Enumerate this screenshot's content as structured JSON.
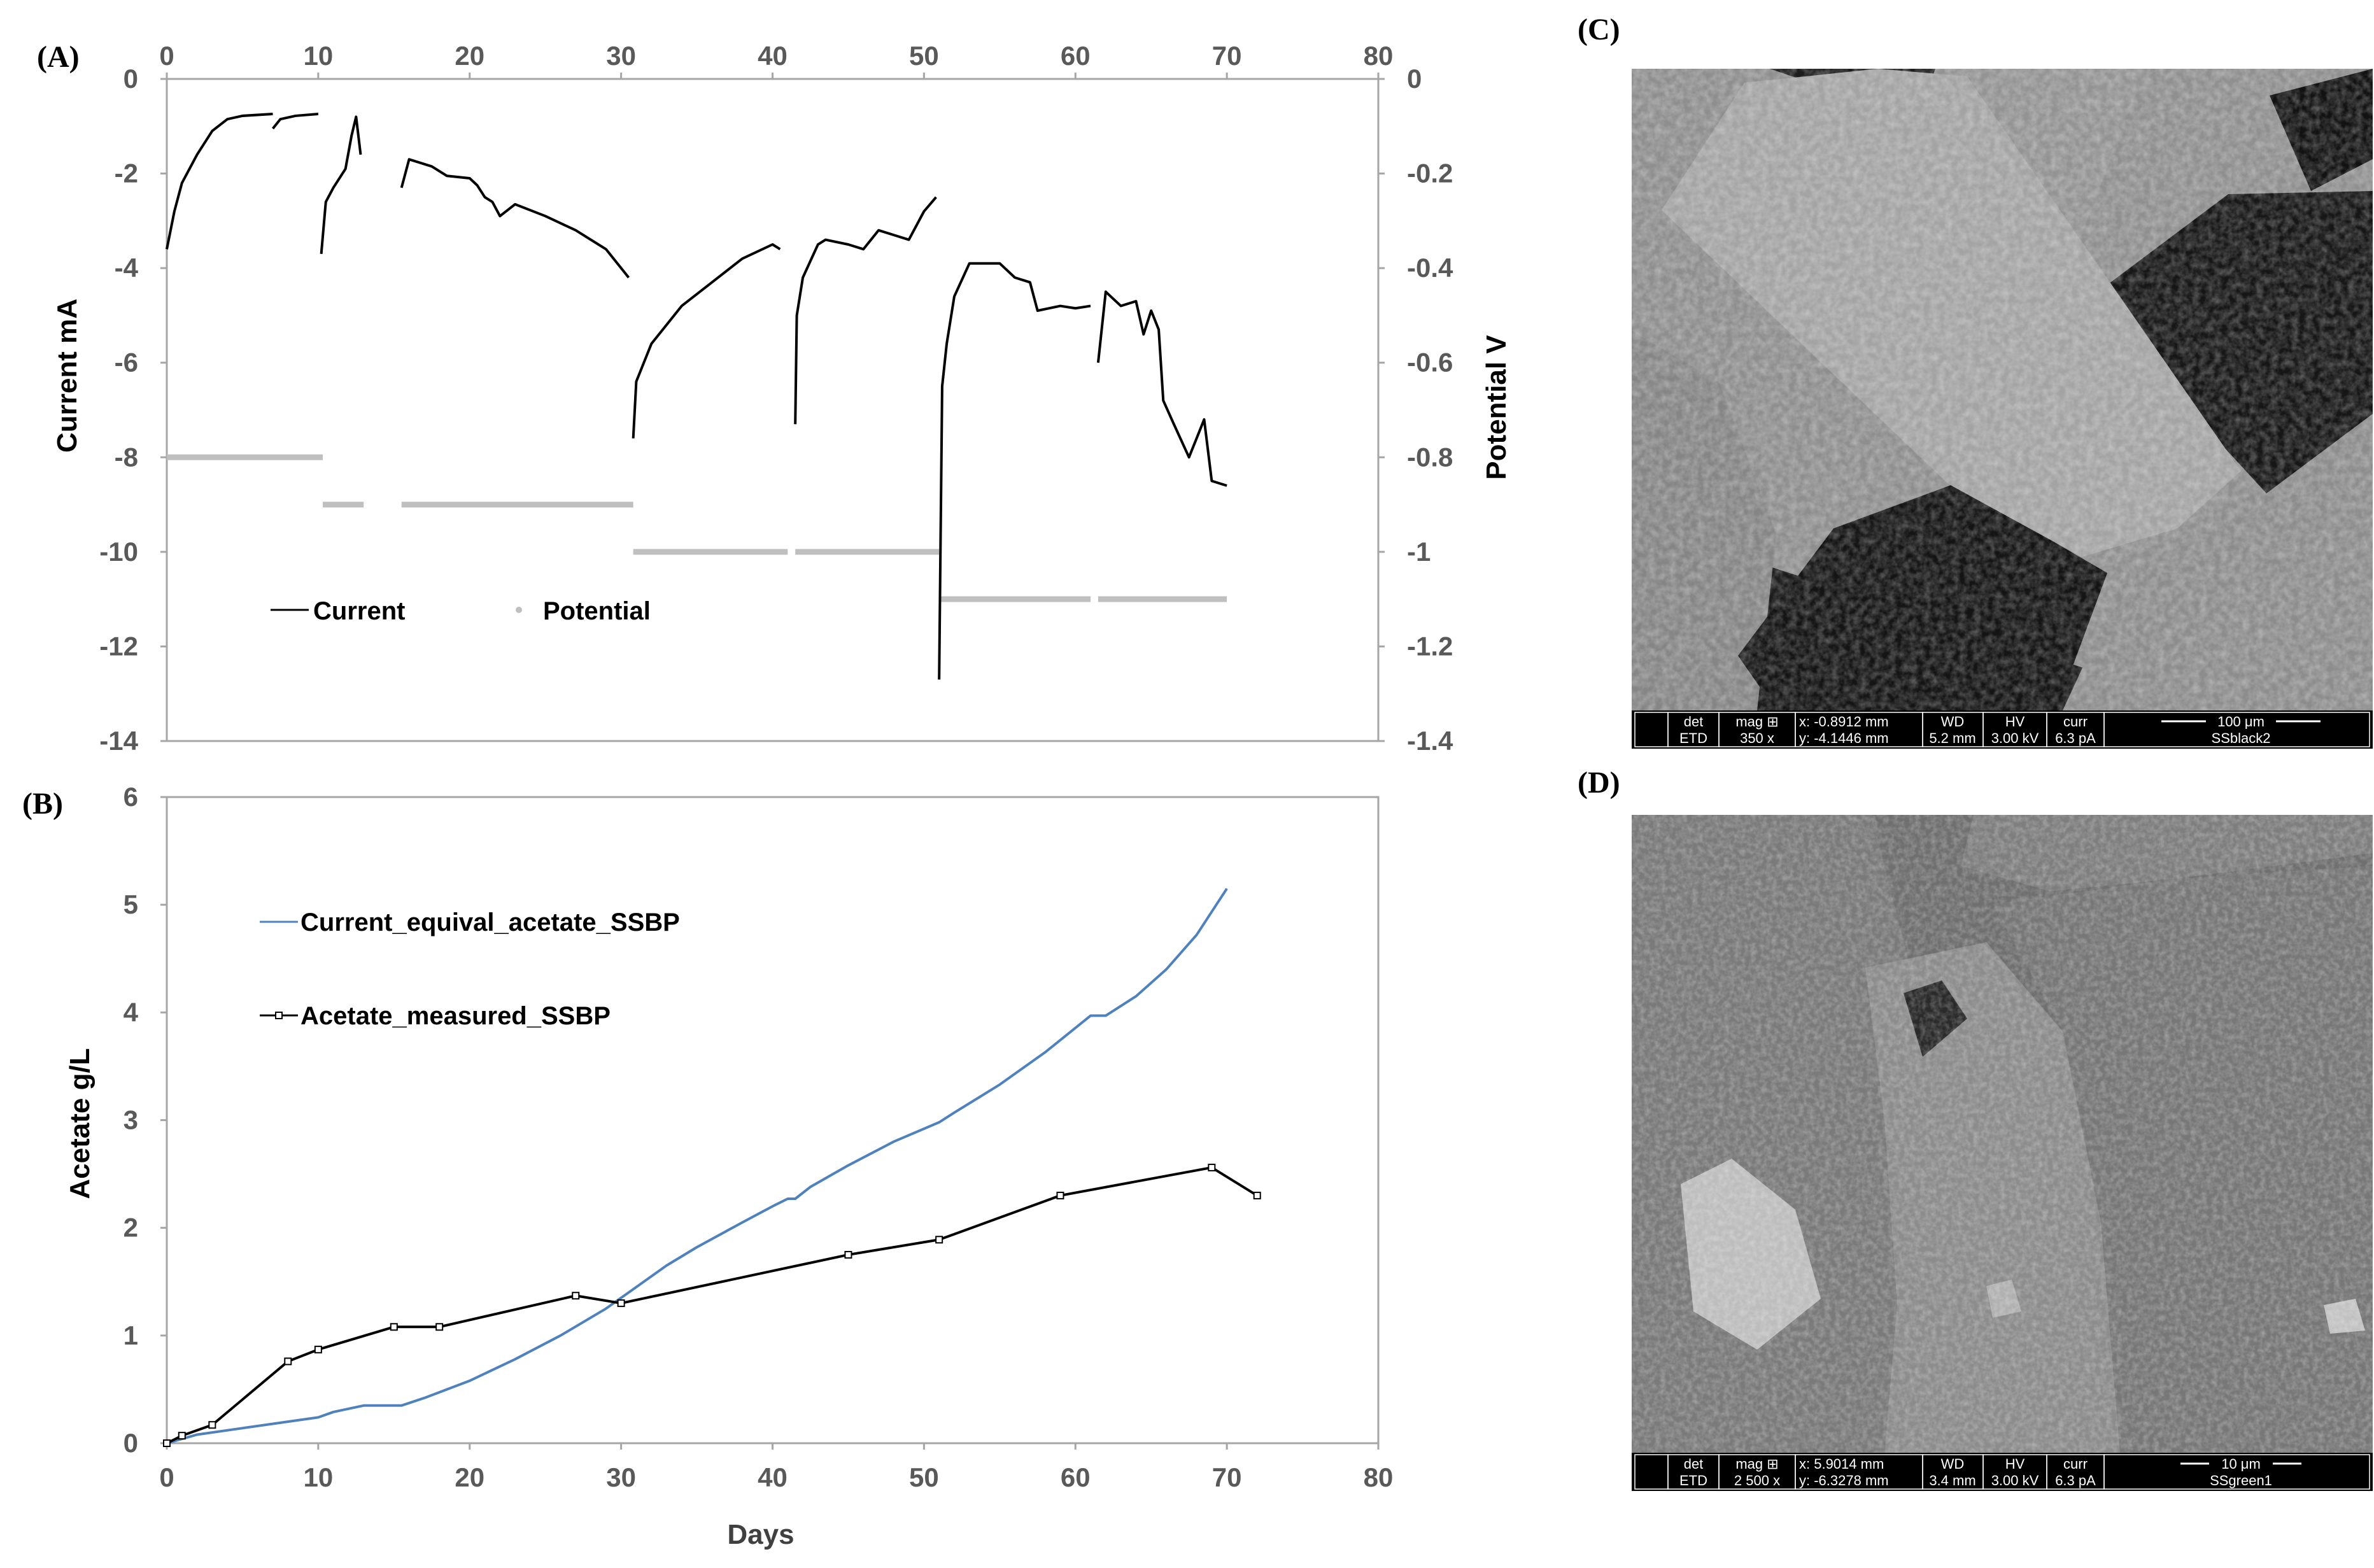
{
  "chart_data": [
    {
      "panel": "(A)",
      "type": "line",
      "xlim": [
        0,
        80
      ],
      "x_ticks": [
        0,
        10,
        20,
        30,
        40,
        50,
        60,
        70,
        80
      ],
      "ylabel": "Current mA",
      "ylim": [
        -14,
        0
      ],
      "y_ticks": [
        0,
        -2,
        -4,
        -6,
        -8,
        -10,
        -12,
        -14
      ],
      "y2label": "Potential V",
      "y2lim": [
        -1.4,
        0
      ],
      "y2_ticks": [
        "0",
        "-0.2",
        "-0.4",
        "-0.6",
        "-0.8",
        "-1",
        "-1.2",
        "-1.4"
      ],
      "legend": [
        "Current",
        "Potential"
      ],
      "legend_position": "lower-left",
      "series": [
        {
          "name": "Current",
          "color": "#000000",
          "segments": [
            [
              [
                0,
                -3.6
              ],
              [
                0.5,
                -2.8
              ],
              [
                1,
                -2.2
              ],
              [
                2,
                -1.6
              ],
              [
                3,
                -1.1
              ],
              [
                4,
                -0.85
              ],
              [
                5,
                -0.78
              ],
              [
                7,
                -0.74
              ]
            ],
            [
              [
                7,
                -1.05
              ],
              [
                7.5,
                -0.85
              ],
              [
                8.5,
                -0.78
              ],
              [
                10,
                -0.74
              ]
            ],
            [
              [
                10.2,
                -3.7
              ],
              [
                10.5,
                -2.6
              ],
              [
                11,
                -2.3
              ],
              [
                11.8,
                -1.9
              ],
              [
                12.2,
                -1.2
              ],
              [
                12.5,
                -0.8
              ],
              [
                12.8,
                -1.6
              ]
            ],
            [
              [
                15.5,
                -2.3
              ],
              [
                16,
                -1.7
              ],
              [
                17.5,
                -1.85
              ],
              [
                18.5,
                -2.05
              ],
              [
                20,
                -2.1
              ],
              [
                20.5,
                -2.25
              ],
              [
                21,
                -2.5
              ],
              [
                21.5,
                -2.6
              ],
              [
                22,
                -2.9
              ],
              [
                23,
                -2.65
              ],
              [
                25,
                -2.9
              ],
              [
                27,
                -3.2
              ],
              [
                29,
                -3.6
              ],
              [
                30.5,
                -4.2
              ]
            ],
            [
              [
                30.8,
                -7.6
              ],
              [
                31,
                -6.4
              ],
              [
                32,
                -5.6
              ],
              [
                34,
                -4.8
              ],
              [
                36,
                -4.3
              ],
              [
                38,
                -3.8
              ],
              [
                40,
                -3.5
              ],
              [
                40.5,
                -3.6
              ]
            ],
            [
              [
                41.5,
                -7.3
              ],
              [
                41.6,
                -5.0
              ],
              [
                42,
                -4.2
              ],
              [
                43,
                -3.5
              ],
              [
                43.5,
                -3.4
              ],
              [
                45,
                -3.5
              ],
              [
                46,
                -3.6
              ],
              [
                47,
                -3.2
              ],
              [
                48,
                -3.3
              ],
              [
                49,
                -3.4
              ],
              [
                50,
                -2.8
              ],
              [
                50.8,
                -2.5
              ]
            ],
            [
              [
                51,
                -12.7
              ],
              [
                51.2,
                -6.5
              ],
              [
                51.5,
                -5.6
              ],
              [
                52,
                -4.6
              ],
              [
                53,
                -3.9
              ],
              [
                55,
                -3.9
              ],
              [
                56,
                -4.2
              ],
              [
                57,
                -4.3
              ],
              [
                57.5,
                -4.9
              ],
              [
                59,
                -4.8
              ],
              [
                60,
                -4.85
              ],
              [
                61,
                -4.8
              ]
            ],
            [
              [
                61.5,
                -6.0
              ],
              [
                62,
                -4.5
              ],
              [
                63,
                -4.8
              ],
              [
                64,
                -4.7
              ],
              [
                64.5,
                -5.4
              ],
              [
                65,
                -4.9
              ],
              [
                65.5,
                -5.3
              ],
              [
                65.8,
                -6.8
              ],
              [
                66.5,
                -7.3
              ],
              [
                67.5,
                -8.0
              ],
              [
                68,
                -7.6
              ],
              [
                68.5,
                -7.2
              ],
              [
                69,
                -8.5
              ],
              [
                70,
                -8.6
              ]
            ]
          ]
        },
        {
          "name": "Potential",
          "color": "#BFBFBF",
          "segments": [
            [
              [
                0,
                -0.8
              ],
              [
                10.3,
                -0.8
              ]
            ],
            [
              [
                10.3,
                -0.9
              ],
              [
                13,
                -0.9
              ]
            ],
            [
              [
                15.5,
                -0.9
              ],
              [
                30.8,
                -0.9
              ]
            ],
            [
              [
                30.8,
                -1.0
              ],
              [
                41,
                -1.0
              ]
            ],
            [
              [
                41.5,
                -1.0
              ],
              [
                51,
                -1.0
              ]
            ],
            [
              [
                51,
                -1.1
              ],
              [
                61,
                -1.1
              ]
            ],
            [
              [
                61.5,
                -1.1
              ],
              [
                70,
                -1.1
              ]
            ]
          ]
        }
      ]
    },
    {
      "panel": "(B)",
      "type": "line",
      "xlabel": "Days",
      "xlim": [
        0,
        80
      ],
      "x_ticks": [
        0,
        10,
        20,
        30,
        40,
        50,
        60,
        70,
        80
      ],
      "ylabel": "Acetate g/L",
      "ylim": [
        0,
        6
      ],
      "y_ticks": [
        0,
        1,
        2,
        3,
        4,
        5,
        6
      ],
      "legend_position": "upper-left",
      "series": [
        {
          "name": "Current_equival_acetate_SSBP",
          "color": "#4F81BD",
          "x": [
            0,
            2,
            5,
            8,
            10,
            11,
            13,
            15.5,
            17,
            20,
            23,
            26,
            29,
            31,
            33,
            35,
            38,
            40,
            41,
            41.5,
            42.5,
            45,
            48,
            51,
            52,
            55,
            58,
            61,
            62,
            64,
            66,
            68,
            70
          ],
          "values": [
            0,
            0.08,
            0.14,
            0.2,
            0.24,
            0.29,
            0.35,
            0.35,
            0.42,
            0.58,
            0.78,
            1.0,
            1.25,
            1.45,
            1.65,
            1.82,
            2.05,
            2.2,
            2.27,
            2.27,
            2.38,
            2.58,
            2.8,
            2.98,
            3.07,
            3.33,
            3.63,
            3.97,
            3.97,
            4.15,
            4.4,
            4.72,
            5.15
          ]
        },
        {
          "name": "Acetate_measured_SSBP",
          "color": "#000000",
          "marker": "open-square",
          "x": [
            0,
            1,
            3,
            8,
            10,
            15,
            18,
            27,
            30,
            45,
            51,
            59,
            69,
            72
          ],
          "values": [
            0,
            0.07,
            0.17,
            0.76,
            0.87,
            1.08,
            1.08,
            1.37,
            1.3,
            1.75,
            1.89,
            2.3,
            2.56,
            2.3
          ]
        }
      ]
    }
  ],
  "sem_c": {
    "panel": "(C)",
    "info": {
      "det_h": "det",
      "det_v": "ETD",
      "mag_h": "mag ⊞",
      "mag_v": "350 x",
      "x": "x: -0.8912 mm",
      "y": "y: -4.1446 mm",
      "wd_h": "WD",
      "wd_v": "5.2 mm",
      "hv_h": "HV",
      "hv_v": "3.00 kV",
      "curr_h": "curr",
      "curr_v": "6.3 pA",
      "scale": "100 μm",
      "sample": "SSblack2"
    }
  },
  "sem_d": {
    "panel": "(D)",
    "info": {
      "det_h": "det",
      "det_v": "ETD",
      "mag_h": "mag ⊞",
      "mag_v": "2 500 x",
      "x": "x: 5.9014 mm",
      "y": "y: -6.3278 mm",
      "wd_h": "WD",
      "wd_v": "3.4 mm",
      "hv_h": "HV",
      "hv_v": "3.00 kV",
      "curr_h": "curr",
      "curr_v": "6.3 pA",
      "scale": "10 μm",
      "sample": "SSgreen1"
    }
  }
}
